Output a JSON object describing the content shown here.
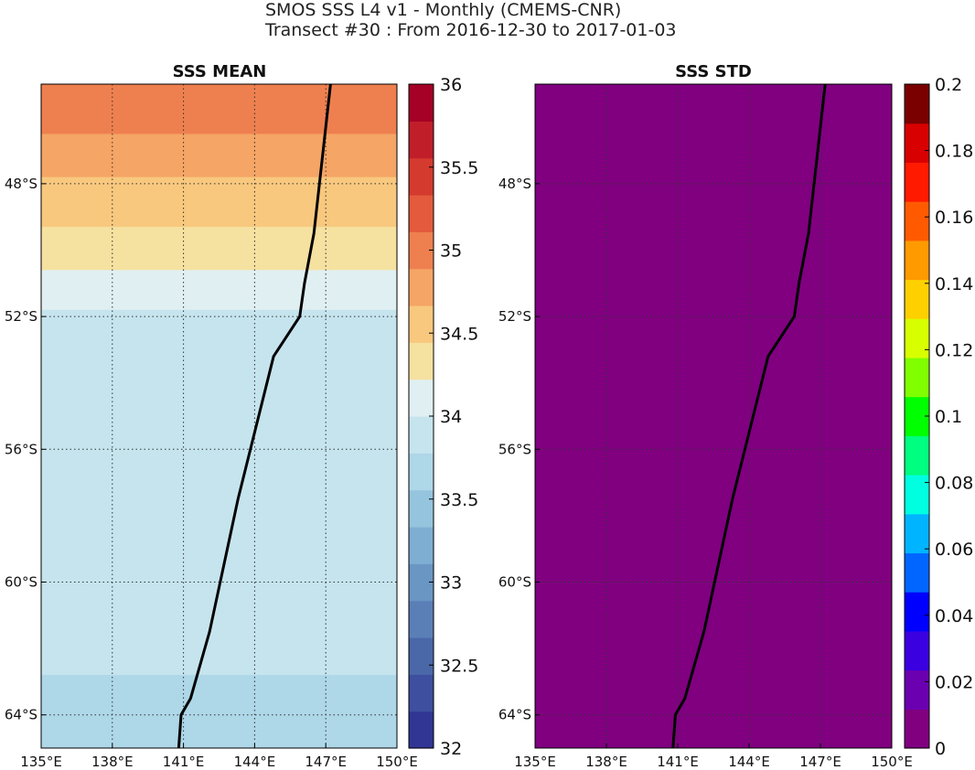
{
  "title": {
    "line1": "SMOS SSS L4 v1 - Monthly (CMEMS-CNR)",
    "line2": "Transect #30 : From 2016-12-30 to 2017-01-03"
  },
  "panels": [
    {
      "title": "SSS MEAN",
      "colorbar": {
        "min": 32,
        "max": 36,
        "ticks": [
          "32",
          "32.5",
          "33",
          "33.5",
          "34",
          "34.5",
          "35",
          "35.5",
          "36"
        ],
        "colormap": "RdYlBu_r discrete",
        "colors": [
          "#313695",
          "#3d4f9e",
          "#4a68a8",
          "#5a7fb6",
          "#6a96c4",
          "#7eaed2",
          "#95c4de",
          "#aed7e8",
          "#c5e4ee",
          "#e0eff1",
          "#f5e1a0",
          "#f8c87e",
          "#f5a565",
          "#ee8050",
          "#e35a3c",
          "#d43a2e",
          "#c01f2a",
          "#a50026"
        ]
      }
    },
    {
      "title": "SSS STD",
      "colorbar": {
        "min": 0,
        "max": 0.2,
        "ticks": [
          "0",
          "0.02",
          "0.04",
          "0.06",
          "0.08",
          "0.1",
          "0.12",
          "0.14",
          "0.16",
          "0.18",
          "0.2"
        ],
        "colormap": "jet-like",
        "colors": [
          "#800080",
          "#6a00b0",
          "#3a00e0",
          "#0000ff",
          "#0066ff",
          "#00b4ff",
          "#00ffe0",
          "#00ff80",
          "#00ff00",
          "#80ff00",
          "#d8ff00",
          "#ffd000",
          "#ff9a00",
          "#ff5a00",
          "#ff1a00",
          "#d80000",
          "#7a0000"
        ]
      }
    }
  ],
  "map": {
    "lon_range": [
      135,
      150
    ],
    "lat_range": [
      -65,
      -45
    ],
    "lon_ticks": [
      "135°E",
      "138°E",
      "141°E",
      "144°E",
      "147°E",
      "150°E"
    ],
    "lat_ticks": [
      "48°S",
      "52°S",
      "56°S",
      "60°S",
      "64°S"
    ]
  },
  "chart_data": {
    "type": "heatmap",
    "transect": {
      "lon": [
        147.2,
        146.5,
        146.1,
        145.9,
        144.8,
        143.3,
        142.1,
        141.3,
        140.9,
        140.8
      ],
      "lat": [
        -45.0,
        -49.5,
        -51.0,
        -52.0,
        -53.2,
        -57.5,
        -61.5,
        -63.5,
        -64.0,
        -65.0
      ]
    },
    "sss_mean": {
      "bands": [
        {
          "from_lat": -45.0,
          "to_lat": -46.5,
          "value": 34.9
        },
        {
          "from_lat": -46.5,
          "to_lat": -47.8,
          "value": 34.7
        },
        {
          "from_lat": -47.8,
          "to_lat": -49.3,
          "value": 34.6
        },
        {
          "from_lat": -49.3,
          "to_lat": -50.6,
          "value": 34.3
        },
        {
          "from_lat": -50.6,
          "to_lat": -51.8,
          "value": 34.1
        },
        {
          "from_lat": -51.8,
          "to_lat": -62.8,
          "value": 33.95
        },
        {
          "from_lat": -62.8,
          "to_lat": -65.0,
          "value": 33.7
        }
      ]
    },
    "sss_std": {
      "value": 0.0
    }
  }
}
